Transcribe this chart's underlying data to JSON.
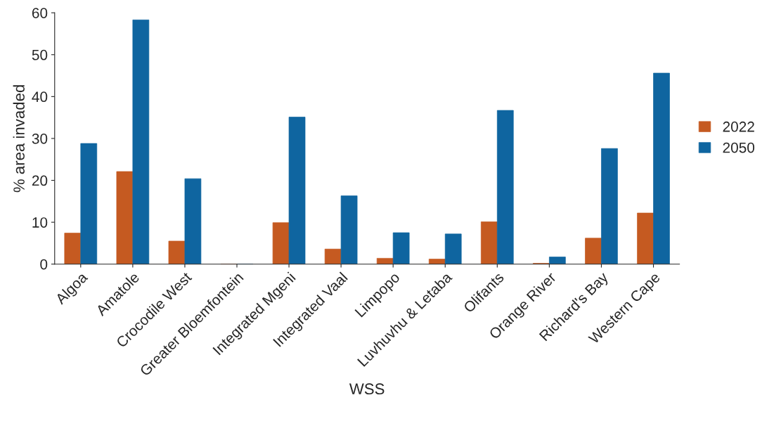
{
  "chart_data": {
    "type": "bar",
    "xlabel": "WSS",
    "ylabel": "% area invaded",
    "categories": [
      "Algoa",
      "Amatole",
      "Crocodile West",
      "Greater Bloemfontein",
      "Integrated Mgeni",
      "Integrated Vaal",
      "Limpopo",
      "Luvhuvhu & Letaba",
      "Olifants",
      "Orange River",
      "Richard's Bay",
      "Western Cape"
    ],
    "series": [
      {
        "name": "2022",
        "color": "#c55a21",
        "values": [
          7.4,
          22.1,
          5.5,
          0,
          9.9,
          3.6,
          1.4,
          1.2,
          10.1,
          0.2,
          6.2,
          12.2
        ]
      },
      {
        "name": "2050",
        "color": "#0f65a0",
        "values": [
          28.8,
          58.3,
          20.4,
          0,
          35.1,
          16.3,
          7.5,
          7.2,
          36.7,
          1.7,
          27.6,
          45.6
        ]
      }
    ],
    "ylim": [
      0,
      60
    ],
    "yticks": [
      0,
      10,
      20,
      30,
      40,
      50,
      60
    ],
    "grid": false,
    "legend": "right"
  }
}
